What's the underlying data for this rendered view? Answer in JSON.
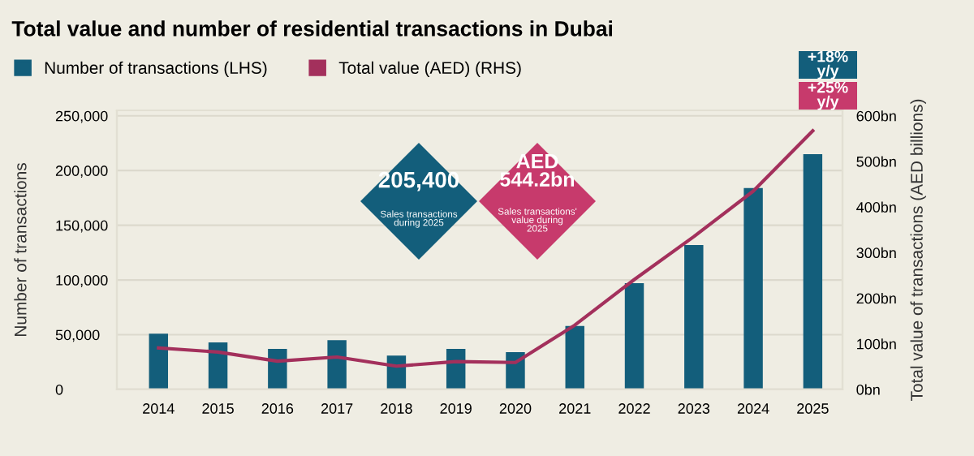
{
  "chart_data": {
    "type": "bar",
    "title": "Total value and number of residential transactions in Dubai",
    "ylabel": "Number of transactions",
    "y2label": "Total value of transactions (AED billions)",
    "categories": [
      "2014",
      "2015",
      "2016",
      "2017",
      "2018",
      "2019",
      "2020",
      "2021",
      "2022",
      "2023",
      "2024",
      "2025"
    ],
    "series": [
      {
        "name": "Number of transactions (LHS)",
        "color": "#135e7b",
        "values": [
          51000,
          43000,
          37000,
          45000,
          31000,
          37000,
          34000,
          58000,
          97000,
          132000,
          184000,
          215000
        ]
      },
      {
        "name": "Total value (AED) (RHS)",
        "type": "line",
        "axis": "y2",
        "color": "#a3305c",
        "values": [
          91,
          82,
          62,
          71,
          51,
          61,
          59,
          141,
          241,
          335,
          435,
          567
        ]
      }
    ],
    "ylim": [
      0,
      255000
    ],
    "yticks": [
      {
        "value": 0,
        "label": "0"
      },
      {
        "value": 50000,
        "label": "50,000"
      },
      {
        "value": 100000,
        "label": "100,000"
      },
      {
        "value": 150000,
        "label": "150,000"
      },
      {
        "value": 200000,
        "label": "200,000"
      },
      {
        "value": 250000,
        "label": "250,000"
      }
    ],
    "y2lim": [
      0,
      612
    ],
    "y2ticks": [
      {
        "value": 0,
        "label": "0bn"
      },
      {
        "value": 100,
        "label": "100bn"
      },
      {
        "value": 200,
        "label": "200bn"
      },
      {
        "value": 300,
        "label": "300bn"
      },
      {
        "value": 400,
        "label": "400bn"
      },
      {
        "value": 500,
        "label": "500bn"
      },
      {
        "value": 600,
        "label": "600bn"
      }
    ],
    "grid": "y",
    "legend": "top left",
    "marker": "none",
    "line_style": "solid",
    "annotations": [
      "205,400",
      "Sales transactions\nduring 2025",
      "AED\n544.2bn",
      "Sales transactions'\nvalue during\n2025",
      "+18%\ny/y",
      "+25%\ny/y"
    ]
  }
}
